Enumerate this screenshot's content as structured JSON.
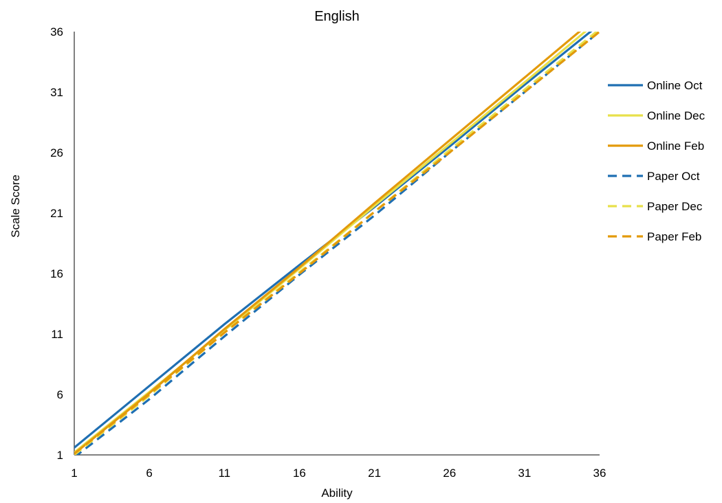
{
  "chart_data": {
    "type": "line",
    "title": "English",
    "xlabel": "Ability",
    "ylabel": "Scale Score",
    "xlim": [
      1,
      36
    ],
    "ylim": [
      1,
      36
    ],
    "xticks": [
      1,
      6,
      11,
      16,
      21,
      26,
      31,
      36
    ],
    "yticks": [
      1,
      6,
      11,
      16,
      21,
      26,
      31,
      36
    ],
    "grid": false,
    "legend_position": "right",
    "x": [
      1,
      6,
      11,
      16,
      21,
      26,
      31,
      36
    ],
    "series": [
      {
        "name": "Online Oct",
        "color": "#1f6fb2",
        "dash": false,
        "values": [
          1.6,
          6.7,
          11.8,
          16.7,
          21.5,
          26.5,
          31.6,
          36.6
        ]
      },
      {
        "name": "Online Dec",
        "color": "#e8e04a",
        "dash": false,
        "values": [
          1.2,
          6.2,
          11.3,
          16.4,
          21.6,
          26.7,
          31.8,
          37.0
        ]
      },
      {
        "name": "Online Feb",
        "color": "#e39a0b",
        "dash": false,
        "values": [
          1.1,
          6.1,
          11.4,
          16.5,
          21.8,
          27.0,
          32.2,
          37.4
        ]
      },
      {
        "name": "Paper Oct",
        "color": "#1f6fb2",
        "dash": true,
        "values": [
          0.8,
          5.6,
          10.8,
          15.9,
          20.8,
          26.0,
          31.0,
          36.0
        ]
      },
      {
        "name": "Paper Dec",
        "color": "#e8e04a",
        "dash": true,
        "values": [
          1.0,
          5.9,
          11.1,
          16.1,
          21.1,
          26.2,
          31.2,
          36.2
        ]
      },
      {
        "name": "Paper Feb",
        "color": "#e39a0b",
        "dash": true,
        "values": [
          1.1,
          6.0,
          11.1,
          16.0,
          21.1,
          26.0,
          31.0,
          36.0
        ]
      }
    ]
  }
}
